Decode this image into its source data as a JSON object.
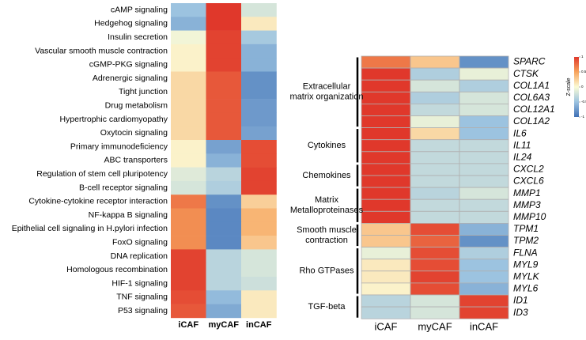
{
  "chart_data": [
    {
      "type": "heatmap",
      "columns": [
        "iCAF",
        "myCAF",
        "inCAF"
      ],
      "rows": [
        {
          "name": "cAMP signaling",
          "values": [
            -0.5,
            1,
            -0.2
          ]
        },
        {
          "name": "Hedgehog signaling",
          "values": [
            -0.6,
            1,
            0.1
          ]
        },
        {
          "name": "Insulin secretion",
          "values": [
            -0.05,
            0.95,
            -0.45
          ]
        },
        {
          "name": "Vascular smooth muscle contraction",
          "values": [
            0.05,
            0.95,
            -0.6
          ]
        },
        {
          "name": "cGMP-PKG  signaling",
          "values": [
            0.05,
            0.95,
            -0.6
          ]
        },
        {
          "name": "Adrenergic signaling",
          "values": [
            0.2,
            0.85,
            -0.8
          ]
        },
        {
          "name": "Tight junction",
          "values": [
            0.2,
            0.85,
            -0.8
          ]
        },
        {
          "name": "Drug metabolism",
          "values": [
            0.2,
            0.85,
            -0.75
          ]
        },
        {
          "name": "Hypertrophic cardiomyopathy",
          "values": [
            0.2,
            0.85,
            -0.75
          ]
        },
        {
          "name": "Oxytocin signaling",
          "values": [
            0.2,
            0.85,
            -0.7
          ]
        },
        {
          "name": "Primary immunodeficiency",
          "values": [
            0.05,
            -0.7,
            0.9
          ]
        },
        {
          "name": "ABC transporters",
          "values": [
            0.05,
            -0.6,
            0.9
          ]
        },
        {
          "name": "Regulation of stem cell pluripotency",
          "values": [
            -0.15,
            -0.35,
            0.95
          ]
        },
        {
          "name": "B-cell receptor signaling",
          "values": [
            -0.2,
            -0.4,
            0.95
          ]
        },
        {
          "name": "Cytokine-cytokine receptor interaction",
          "values": [
            0.7,
            -0.8,
            0.25
          ]
        },
        {
          "name": "NF-kappa B signaling",
          "values": [
            0.6,
            -0.85,
            0.4
          ]
        },
        {
          "name": "Epithelial cell signaling in H.pylori infection",
          "values": [
            0.6,
            -0.85,
            0.4
          ]
        },
        {
          "name": "FoxO signaling",
          "values": [
            0.6,
            -0.85,
            0.3
          ]
        },
        {
          "name": "DNA replication",
          "values": [
            0.95,
            -0.35,
            -0.2
          ]
        },
        {
          "name": "Homologous recombination",
          "values": [
            0.95,
            -0.35,
            -0.2
          ]
        },
        {
          "name": "HIF-1 signaling",
          "values": [
            0.95,
            -0.35,
            -0.25
          ]
        },
        {
          "name": "TNF signaling",
          "values": [
            0.9,
            -0.55,
            0.1
          ]
        },
        {
          "name": "P53 signaling",
          "values": [
            0.85,
            -0.65,
            0.1
          ]
        }
      ]
    },
    {
      "type": "heatmap",
      "columns": [
        "iCAF",
        "myCAF",
        "inCAF"
      ],
      "groups": [
        {
          "label": [
            "Extracellular",
            "matrix organization"
          ],
          "rows": [
            {
              "name": "SPARC",
              "values": [
                0.7,
                0.3,
                -0.8
              ]
            },
            {
              "name": "CTSK",
              "values": [
                1,
                -0.4,
                -0.1
              ]
            },
            {
              "name": "COL1A1",
              "values": [
                1,
                -0.2,
                -0.4
              ]
            },
            {
              "name": "COL6A3",
              "values": [
                1,
                -0.4,
                -0.2
              ]
            },
            {
              "name": "COL12A1",
              "values": [
                1,
                -0.3,
                -0.2
              ]
            },
            {
              "name": "COL1A2",
              "values": [
                1,
                -0.1,
                -0.5
              ]
            }
          ]
        },
        {
          "label": [
            "Cytokines"
          ],
          "rows": [
            {
              "name": "IL6",
              "values": [
                1,
                0.2,
                -0.5
              ]
            },
            {
              "name": "IL11",
              "values": [
                1,
                -0.3,
                -0.3
              ]
            },
            {
              "name": "IL24",
              "values": [
                1,
                -0.3,
                -0.3
              ]
            }
          ]
        },
        {
          "label": [
            "Chemokines"
          ],
          "rows": [
            {
              "name": "CXCL2",
              "values": [
                1,
                -0.3,
                -0.3
              ]
            },
            {
              "name": "CXCL6",
              "values": [
                1,
                -0.3,
                -0.3
              ]
            }
          ]
        },
        {
          "label": [
            "Matrix",
            "Metalloproteinases"
          ],
          "rows": [
            {
              "name": "MMP1",
              "values": [
                1,
                -0.35,
                -0.2
              ]
            },
            {
              "name": "MMP3",
              "values": [
                1,
                -0.3,
                -0.3
              ]
            },
            {
              "name": "MMP10",
              "values": [
                1,
                -0.3,
                -0.3
              ]
            }
          ]
        },
        {
          "label": [
            "Smooth muscle",
            "contraction"
          ],
          "rows": [
            {
              "name": "TPM1",
              "values": [
                0.3,
                0.9,
                -0.6
              ]
            },
            {
              "name": "TPM2",
              "values": [
                0.3,
                0.8,
                -0.8
              ]
            }
          ]
        },
        {
          "label": [
            "Rho GTPases"
          ],
          "rows": [
            {
              "name": "FLNA",
              "values": [
                -0.1,
                0.9,
                -0.4
              ]
            },
            {
              "name": "MYL9",
              "values": [
                0.1,
                0.9,
                -0.5
              ]
            },
            {
              "name": "MYLK",
              "values": [
                0.1,
                0.95,
                -0.5
              ]
            },
            {
              "name": "MYL6",
              "values": [
                0.05,
                0.9,
                -0.6
              ]
            }
          ]
        },
        {
          "label": [
            "TGF-beta"
          ],
          "rows": [
            {
              "name": "ID1",
              "values": [
                -0.35,
                -0.2,
                0.95
              ]
            },
            {
              "name": "ID3",
              "values": [
                -0.35,
                -0.2,
                0.95
              ]
            }
          ]
        }
      ],
      "colorbar_title": "Z-scale",
      "zlim": [
        -1,
        1
      ],
      "zticks": [
        1,
        0.5,
        0,
        -0.5,
        -1
      ],
      "colors": [
        "#3f6fb5",
        "#9cc3e0",
        "#fbfbd6",
        "#f7a35c",
        "#e0382b"
      ]
    }
  ]
}
